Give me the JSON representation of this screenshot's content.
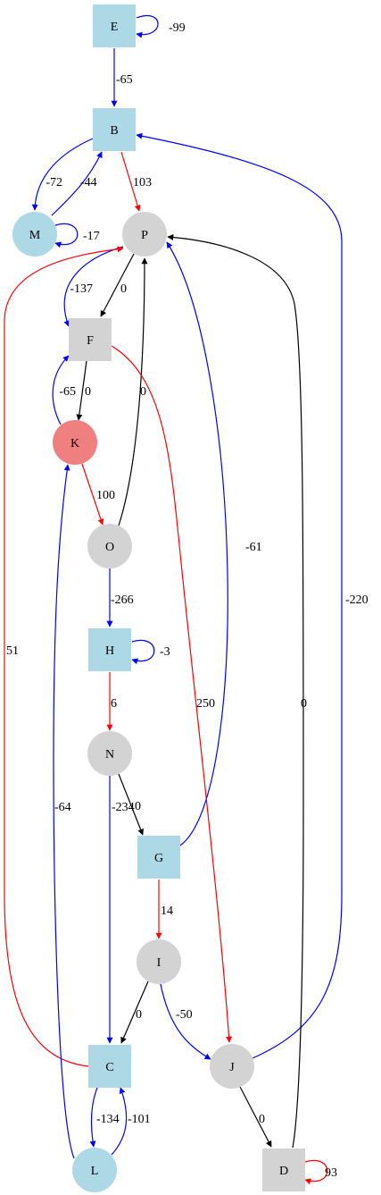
{
  "colors": {
    "blue_edge": "#0000ff",
    "red_edge": "#ff0000",
    "black_edge": "#000000",
    "node_blue": "#add8e6",
    "node_gray": "#d3d3d3",
    "node_red": "#f08080"
  },
  "nodes": [
    {
      "id": "E",
      "label": "E",
      "shape": "square",
      "color": "node_blue"
    },
    {
      "id": "B",
      "label": "B",
      "shape": "square",
      "color": "node_blue"
    },
    {
      "id": "M",
      "label": "M",
      "shape": "circle",
      "color": "node_blue"
    },
    {
      "id": "P",
      "label": "P",
      "shape": "circle",
      "color": "node_gray"
    },
    {
      "id": "F",
      "label": "F",
      "shape": "square",
      "color": "node_gray"
    },
    {
      "id": "K",
      "label": "K",
      "shape": "circle",
      "color": "node_red"
    },
    {
      "id": "O",
      "label": "O",
      "shape": "circle",
      "color": "node_gray"
    },
    {
      "id": "H",
      "label": "H",
      "shape": "square",
      "color": "node_blue"
    },
    {
      "id": "N",
      "label": "N",
      "shape": "circle",
      "color": "node_gray"
    },
    {
      "id": "G",
      "label": "G",
      "shape": "square",
      "color": "node_blue"
    },
    {
      "id": "I",
      "label": "I",
      "shape": "circle",
      "color": "node_gray"
    },
    {
      "id": "C",
      "label": "C",
      "shape": "square",
      "color": "node_blue"
    },
    {
      "id": "J",
      "label": "J",
      "shape": "circle",
      "color": "node_gray"
    },
    {
      "id": "L",
      "label": "L",
      "shape": "circle",
      "color": "node_blue"
    },
    {
      "id": "D",
      "label": "D",
      "shape": "square",
      "color": "node_gray"
    }
  ],
  "edges": [
    {
      "id": "E-E",
      "from": "E",
      "to": "E",
      "weight": "-99",
      "color": "blue_edge"
    },
    {
      "id": "E-B",
      "from": "E",
      "to": "B",
      "weight": "-65",
      "color": "blue_edge"
    },
    {
      "id": "B-M",
      "from": "B",
      "to": "M",
      "weight": "-72",
      "color": "blue_edge"
    },
    {
      "id": "M-B",
      "from": "M",
      "to": "B",
      "weight": "-44",
      "color": "blue_edge"
    },
    {
      "id": "B-P",
      "from": "B",
      "to": "P",
      "weight": "103",
      "color": "red_edge"
    },
    {
      "id": "M-M",
      "from": "M",
      "to": "M",
      "weight": "-17",
      "color": "blue_edge"
    },
    {
      "id": "P-F",
      "from": "P",
      "to": "F",
      "weight": "0",
      "color": "black_edge"
    },
    {
      "id": "P-F2",
      "from": "P",
      "to": "F",
      "weight": "-137",
      "color": "blue_edge"
    },
    {
      "id": "F-K",
      "from": "F",
      "to": "K",
      "weight": "0",
      "color": "black_edge"
    },
    {
      "id": "K-F",
      "from": "K",
      "to": "F",
      "weight": "-65",
      "color": "blue_edge"
    },
    {
      "id": "K-O",
      "from": "K",
      "to": "O",
      "weight": "100",
      "color": "red_edge"
    },
    {
      "id": "O-P",
      "from": "O",
      "to": "P",
      "weight": "0",
      "color": "black_edge"
    },
    {
      "id": "O-H",
      "from": "O",
      "to": "H",
      "weight": "-266",
      "color": "blue_edge"
    },
    {
      "id": "H-H",
      "from": "H",
      "to": "H",
      "weight": "-3",
      "color": "blue_edge"
    },
    {
      "id": "H-N",
      "from": "H",
      "to": "N",
      "weight": "6",
      "color": "red_edge"
    },
    {
      "id": "N-G",
      "from": "N",
      "to": "G",
      "weight": "0",
      "color": "black_edge"
    },
    {
      "id": "N-C",
      "from": "N",
      "to": "C",
      "weight": "-234",
      "color": "blue_edge"
    },
    {
      "id": "G-P",
      "from": "G",
      "to": "P",
      "weight": "-61",
      "color": "blue_edge"
    },
    {
      "id": "G-I",
      "from": "G",
      "to": "I",
      "weight": "14",
      "color": "red_edge"
    },
    {
      "id": "I-C",
      "from": "I",
      "to": "C",
      "weight": "0",
      "color": "black_edge"
    },
    {
      "id": "I-J",
      "from": "I",
      "to": "J",
      "weight": "-50",
      "color": "blue_edge"
    },
    {
      "id": "F-J",
      "from": "F",
      "to": "J",
      "weight": "250",
      "color": "red_edge"
    },
    {
      "id": "C-P",
      "from": "C",
      "to": "P",
      "weight": "51",
      "color": "red_edge"
    },
    {
      "id": "C-L",
      "from": "C",
      "to": "L",
      "weight": "-134",
      "color": "blue_edge"
    },
    {
      "id": "L-C",
      "from": "L",
      "to": "C",
      "weight": "-101",
      "color": "blue_edge"
    },
    {
      "id": "L-K",
      "from": "L",
      "to": "K",
      "weight": "-64",
      "color": "blue_edge"
    },
    {
      "id": "J-B",
      "from": "J",
      "to": "B",
      "weight": "-220",
      "color": "blue_edge"
    },
    {
      "id": "J-D",
      "from": "J",
      "to": "D",
      "weight": "0",
      "color": "black_edge"
    },
    {
      "id": "D-P",
      "from": "D",
      "to": "P",
      "weight": "0",
      "color": "black_edge"
    },
    {
      "id": "D-D",
      "from": "D",
      "to": "D",
      "weight": "93",
      "color": "red_edge"
    }
  ]
}
